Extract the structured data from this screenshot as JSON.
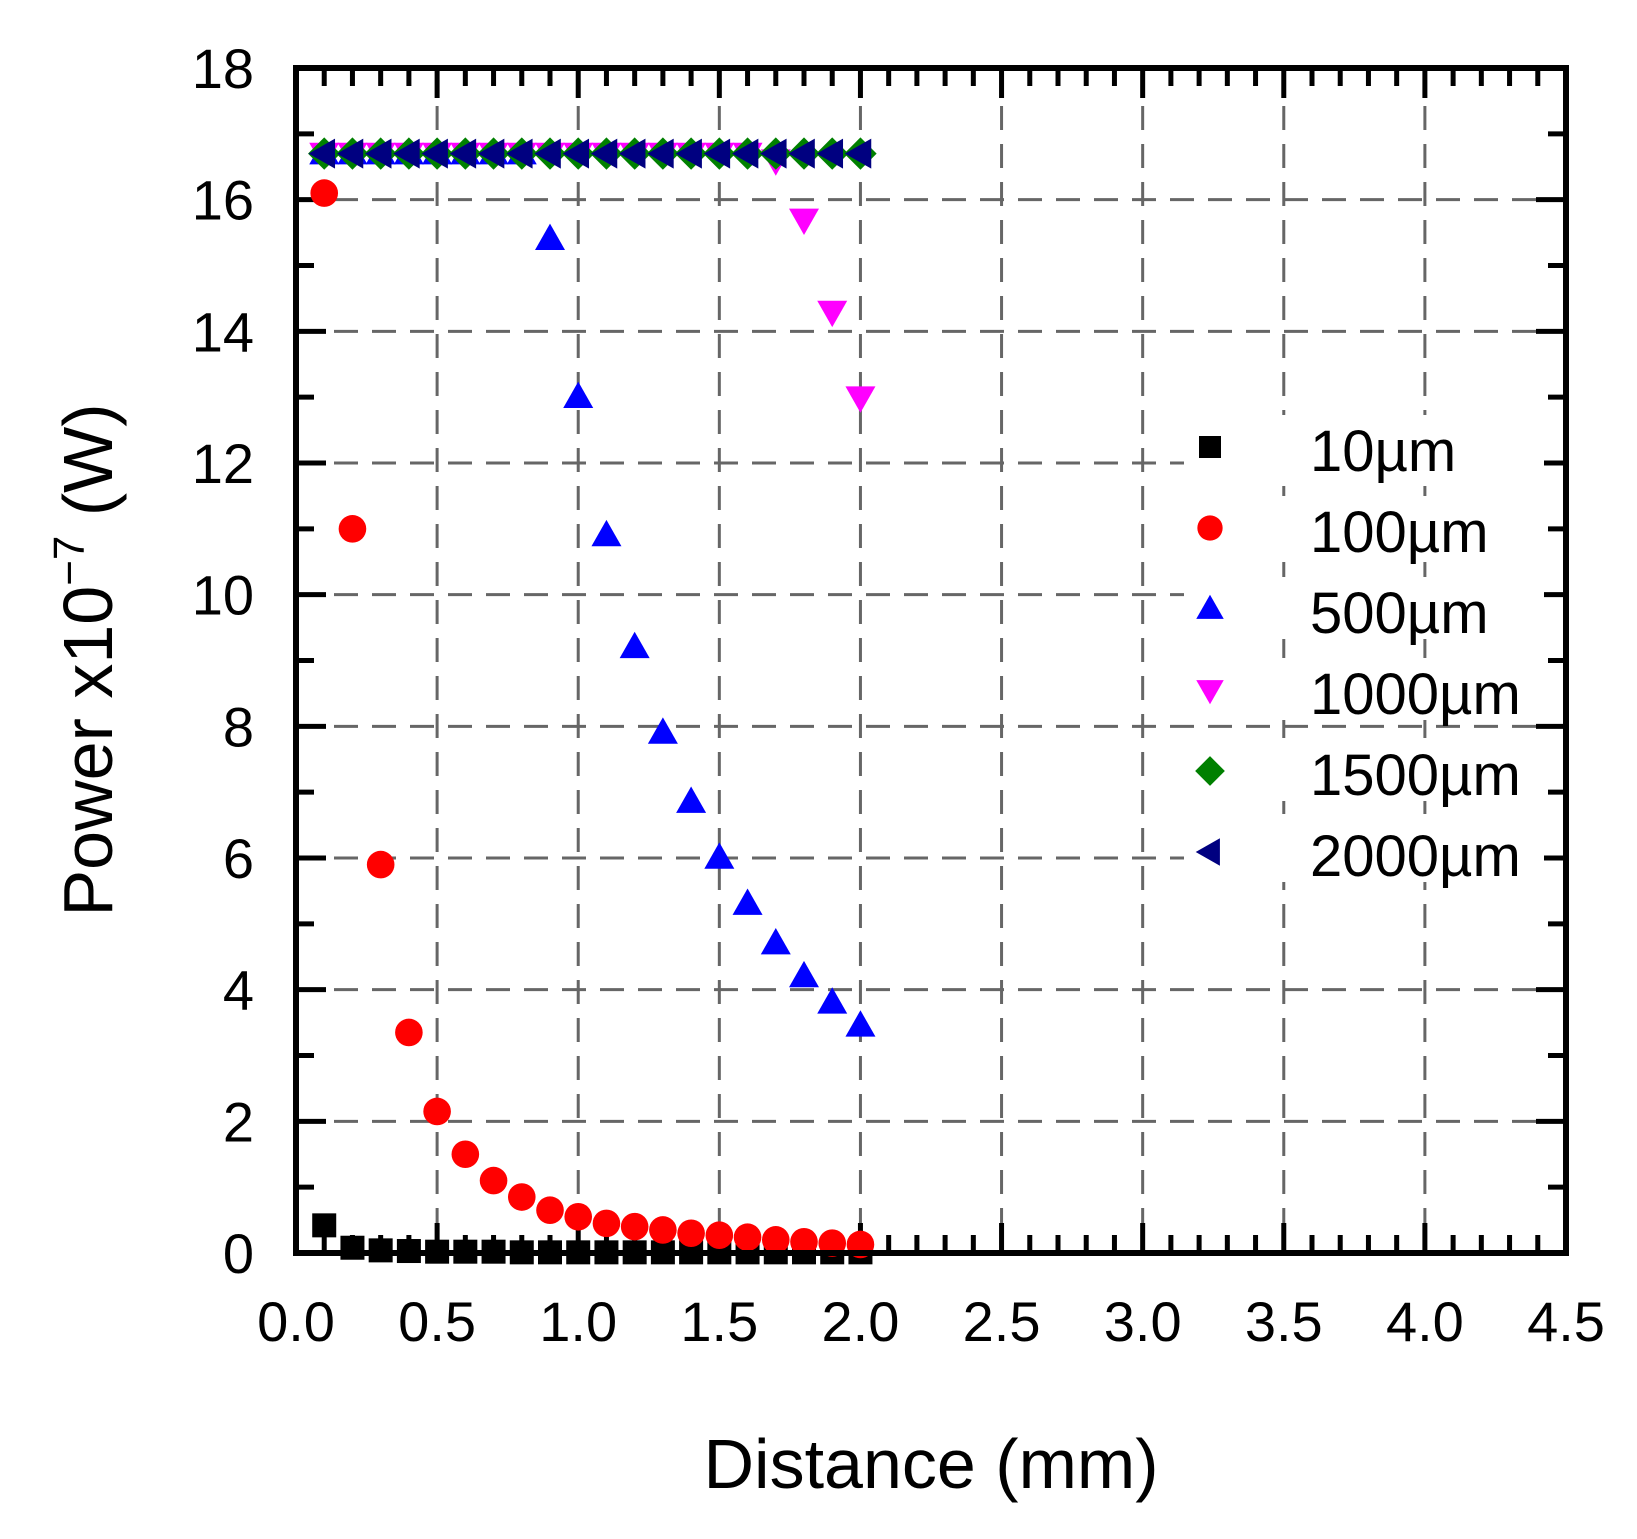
{
  "chart_data": {
    "type": "scatter",
    "title": "",
    "xlabel": "Distance (mm)",
    "ylabel_prefix": "Power x10",
    "ylabel_exponent": "−7",
    "ylabel_unit": " (W)",
    "xlim": [
      0.0,
      4.5
    ],
    "ylim": [
      0,
      18
    ],
    "x_ticks": [
      0.0,
      0.5,
      1.0,
      1.5,
      2.0,
      2.5,
      3.0,
      3.5,
      4.0,
      4.5
    ],
    "x_tick_labels": [
      "0.0",
      "0.5",
      "1.0",
      "1.5",
      "2.0",
      "2.5",
      "3.0",
      "3.5",
      "4.0",
      "4.5"
    ],
    "y_ticks": [
      0,
      2,
      4,
      6,
      8,
      10,
      12,
      14,
      16,
      18
    ],
    "y_tick_labels": [
      "0",
      "2",
      "4",
      "6",
      "8",
      "10",
      "12",
      "14",
      "16",
      "18"
    ],
    "grid": true,
    "grid_style": "dashed",
    "legend_position": "right-middle",
    "series": [
      {
        "name": "10µm",
        "marker": "square",
        "color": "#000000",
        "x": [
          0.1,
          0.2,
          0.3,
          0.4,
          0.5,
          0.6,
          0.7,
          0.8,
          0.9,
          1.0,
          1.1,
          1.2,
          1.3,
          1.4,
          1.5,
          1.6,
          1.7,
          1.8,
          1.9,
          2.0
        ],
        "y": [
          0.42,
          0.08,
          0.04,
          0.03,
          0.02,
          0.02,
          0.02,
          0.01,
          0.01,
          0.01,
          0.01,
          0.01,
          0.01,
          0.01,
          0.01,
          0.01,
          0.01,
          0.01,
          0.01,
          0.01
        ]
      },
      {
        "name": "100µm",
        "marker": "circle",
        "color": "#ff0000",
        "x": [
          0.1,
          0.2,
          0.3,
          0.4,
          0.5,
          0.6,
          0.7,
          0.8,
          0.9,
          1.0,
          1.1,
          1.2,
          1.3,
          1.4,
          1.5,
          1.6,
          1.7,
          1.8,
          1.9,
          2.0
        ],
        "y": [
          16.1,
          11.0,
          5.9,
          3.35,
          2.15,
          1.5,
          1.1,
          0.85,
          0.65,
          0.55,
          0.45,
          0.4,
          0.35,
          0.3,
          0.27,
          0.24,
          0.2,
          0.17,
          0.15,
          0.13
        ]
      },
      {
        "name": "500µm",
        "marker": "triangle-up",
        "color": "#0000ff",
        "x": [
          0.1,
          0.2,
          0.3,
          0.4,
          0.5,
          0.6,
          0.7,
          0.8,
          0.9,
          1.0,
          1.1,
          1.2,
          1.3,
          1.4,
          1.5,
          1.6,
          1.7,
          1.8,
          1.9,
          2.0
        ],
        "y": [
          16.7,
          16.7,
          16.7,
          16.7,
          16.7,
          16.7,
          16.7,
          16.7,
          15.4,
          13.0,
          10.9,
          9.2,
          7.9,
          6.85,
          6.0,
          5.3,
          4.7,
          4.2,
          3.8,
          3.45
        ]
      },
      {
        "name": "1000µm",
        "marker": "triangle-down",
        "color": "#ff00ff",
        "x": [
          0.1,
          0.2,
          0.3,
          0.4,
          0.5,
          0.6,
          0.7,
          0.8,
          0.9,
          1.0,
          1.1,
          1.2,
          1.3,
          1.4,
          1.5,
          1.6,
          1.7,
          1.8,
          1.9,
          2.0
        ],
        "y": [
          16.7,
          16.7,
          16.7,
          16.7,
          16.7,
          16.7,
          16.7,
          16.7,
          16.7,
          16.7,
          16.7,
          16.7,
          16.7,
          16.7,
          16.7,
          16.7,
          16.6,
          15.7,
          14.3,
          13.0
        ]
      },
      {
        "name": "1500µm",
        "marker": "diamond",
        "color": "#008000",
        "x": [
          0.1,
          0.2,
          0.3,
          0.4,
          0.5,
          0.6,
          0.7,
          0.8,
          0.9,
          1.0,
          1.1,
          1.2,
          1.3,
          1.4,
          1.5,
          1.6,
          1.7,
          1.8,
          1.9,
          2.0
        ],
        "y": [
          16.7,
          16.7,
          16.7,
          16.7,
          16.7,
          16.7,
          16.7,
          16.7,
          16.7,
          16.7,
          16.7,
          16.7,
          16.7,
          16.7,
          16.7,
          16.7,
          16.7,
          16.7,
          16.7,
          16.7
        ]
      },
      {
        "name": "2000µm",
        "marker": "triangle-left",
        "color": "#000080",
        "x": [
          0.1,
          0.2,
          0.3,
          0.4,
          0.5,
          0.6,
          0.7,
          0.8,
          0.9,
          1.0,
          1.1,
          1.2,
          1.3,
          1.4,
          1.5,
          1.6,
          1.7,
          1.8,
          1.9,
          2.0
        ],
        "y": [
          16.7,
          16.7,
          16.7,
          16.7,
          16.7,
          16.7,
          16.7,
          16.7,
          16.7,
          16.7,
          16.7,
          16.7,
          16.7,
          16.7,
          16.7,
          16.7,
          16.7,
          16.7,
          16.7,
          16.7
        ]
      }
    ]
  }
}
